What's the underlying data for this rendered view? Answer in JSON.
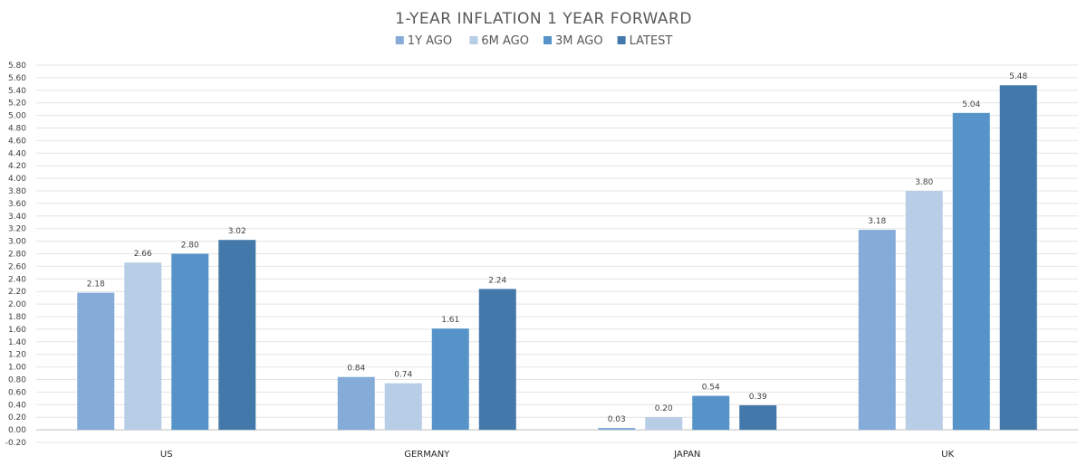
{
  "chart_data": {
    "type": "bar",
    "title": "1-YEAR INFLATION 1 YEAR FORWARD",
    "categories": [
      "US",
      "GERMANY",
      "JAPAN",
      "UK"
    ],
    "series": [
      {
        "name": "1Y AGO",
        "color": "#85acd8",
        "values": [
          2.18,
          0.84,
          0.03,
          3.18
        ]
      },
      {
        "name": "6M AGO",
        "color": "#b8cde6",
        "values": [
          2.66,
          0.74,
          0.2,
          3.8
        ]
      },
      {
        "name": "3M AGO",
        "color": "#5593c8",
        "values": [
          2.8,
          1.61,
          0.54,
          5.04
        ]
      },
      {
        "name": "LATEST",
        "color": "#4379aa",
        "values": [
          3.02,
          2.24,
          0.39,
          5.48
        ]
      }
    ],
    "ylim": [
      -0.2,
      5.8
    ],
    "ytick_step": 0.2,
    "grid": true,
    "legend_position": "top-center"
  }
}
